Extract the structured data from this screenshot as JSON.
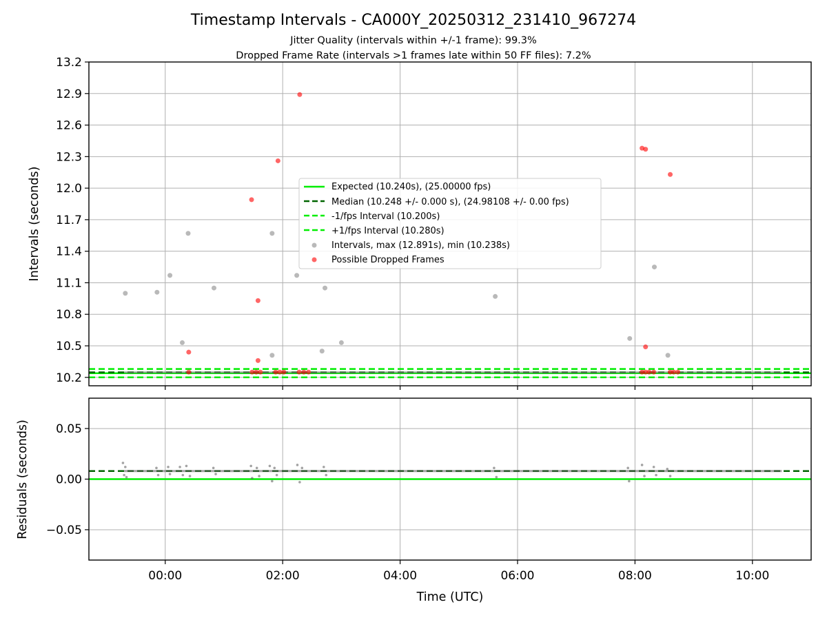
{
  "chart_data": [
    {
      "type": "scatter",
      "title": "Timestamp Intervals - CA000Y_20250312_231410_967274",
      "subtitle_lines": [
        "Jitter Quality (intervals within +/-1 frame): 99.3%",
        "Dropped Frame Rate (intervals >1 frames late within 50 FF files): 7.2%"
      ],
      "xlabel": "",
      "ylabel": "Intervals (seconds)",
      "x_unit": "hours relative to 00:00 UTC",
      "xlim": [
        -1.3,
        11.0
      ],
      "ylim": [
        10.12,
        13.2
      ],
      "yticks": [
        "10.2",
        "10.5",
        "10.8",
        "11.1",
        "11.4",
        "11.7",
        "12.0",
        "12.3",
        "12.6",
        "12.9",
        "13.2"
      ],
      "xticks": [
        {
          "v": 0,
          "label": "00:00"
        },
        {
          "v": 2,
          "label": "02:00"
        },
        {
          "v": 4,
          "label": "04:00"
        },
        {
          "v": 6,
          "label": "06:00"
        },
        {
          "v": 8,
          "label": "08:00"
        },
        {
          "v": 10,
          "label": "10:00"
        }
      ],
      "grid": true,
      "legend_position": "center",
      "lines": [
        {
          "label": "Expected (10.240s), (25.00000 fps)",
          "y": 10.24,
          "style": "solid",
          "color": "#00ee00"
        },
        {
          "label": "Median (10.248 +/- 0.000 s), (24.98108 +/- 0.00 fps)",
          "y": 10.248,
          "style": "dashed",
          "color": "#006400"
        },
        {
          "label": "-1/fps Interval (10.200s)",
          "y": 10.2,
          "style": "dashed",
          "color": "#00ee00"
        },
        {
          "label": "+1/fps Interval (10.280s)",
          "y": 10.28,
          "style": "dashed",
          "color": "#00ee00"
        }
      ],
      "series": [
        {
          "name": "Intervals, max (12.891s), min (10.238s)",
          "color": "#808080",
          "points": [
            [
              -0.68,
              11.0
            ],
            [
              -0.14,
              11.01
            ],
            [
              0.08,
              11.17
            ],
            [
              0.29,
              10.53
            ],
            [
              0.39,
              11.57
            ],
            [
              0.83,
              11.05
            ],
            [
              1.82,
              11.57
            ],
            [
              1.82,
              10.41
            ],
            [
              2.24,
              11.17
            ],
            [
              2.67,
              10.45
            ],
            [
              2.72,
              11.05
            ],
            [
              3.0,
              10.53
            ],
            [
              5.62,
              10.97
            ],
            [
              7.91,
              10.57
            ],
            [
              8.33,
              11.25
            ],
            [
              8.56,
              10.41
            ]
          ],
          "baseline": {
            "y": 10.248,
            "x_from": -0.7,
            "x_to": 10.5
          }
        },
        {
          "name": "Possible Dropped Frames",
          "color": "#ff0000",
          "points": [
            [
              0.4,
              10.44
            ],
            [
              1.47,
              11.89
            ],
            [
              1.58,
              10.93
            ],
            [
              1.58,
              10.36
            ],
            [
              1.92,
              12.26
            ],
            [
              2.29,
              12.89
            ],
            [
              8.12,
              12.38
            ],
            [
              8.18,
              12.37
            ],
            [
              8.18,
              10.49
            ],
            [
              8.6,
              12.13
            ],
            [
              0.4,
              10.25
            ],
            [
              1.48,
              10.25
            ],
            [
              1.55,
              10.25
            ],
            [
              1.62,
              10.25
            ],
            [
              1.88,
              10.25
            ],
            [
              1.95,
              10.25
            ],
            [
              2.02,
              10.25
            ],
            [
              2.28,
              10.25
            ],
            [
              2.36,
              10.25
            ],
            [
              2.44,
              10.25
            ],
            [
              8.12,
              10.25
            ],
            [
              8.18,
              10.25
            ],
            [
              8.24,
              10.25
            ],
            [
              8.32,
              10.25
            ],
            [
              8.6,
              10.25
            ],
            [
              8.66,
              10.25
            ],
            [
              8.73,
              10.25
            ]
          ]
        }
      ]
    },
    {
      "type": "scatter",
      "xlabel": "Time (UTC)",
      "ylabel": "Residuals (seconds)",
      "x_unit": "hours relative to 00:00 UTC",
      "xlim": [
        -1.3,
        11.0
      ],
      "ylim": [
        -0.08,
        0.08
      ],
      "yticks": [
        {
          "v": 0.05,
          "label": "0.05"
        },
        {
          "v": 0.0,
          "label": "0.00"
        },
        {
          "v": -0.05,
          "label": "−0.05"
        }
      ],
      "xticks": [
        {
          "v": 0,
          "label": "00:00"
        },
        {
          "v": 2,
          "label": "02:00"
        },
        {
          "v": 4,
          "label": "04:00"
        },
        {
          "v": 6,
          "label": "06:00"
        },
        {
          "v": 8,
          "label": "08:00"
        },
        {
          "v": 10,
          "label": "10:00"
        }
      ],
      "grid": true,
      "lines": [
        {
          "y": 0.0,
          "style": "solid",
          "color": "#00ee00"
        },
        {
          "y": 0.008,
          "style": "dashed",
          "color": "#006400"
        }
      ],
      "series": [
        {
          "color": "#555555",
          "points": [
            [
              -0.72,
              0.016
            ],
            [
              -0.7,
              0.004
            ],
            [
              -0.68,
              0.012
            ],
            [
              -0.66,
              0.002
            ],
            [
              -0.15,
              0.011
            ],
            [
              -0.12,
              0.004
            ],
            [
              0.05,
              0.012
            ],
            [
              0.08,
              0.005
            ],
            [
              0.25,
              0.012
            ],
            [
              0.3,
              0.004
            ],
            [
              0.36,
              0.013
            ],
            [
              0.42,
              0.003
            ],
            [
              0.82,
              0.011
            ],
            [
              0.86,
              0.005
            ],
            [
              1.46,
              0.013
            ],
            [
              1.48,
              0.001
            ],
            [
              1.56,
              0.011
            ],
            [
              1.6,
              0.003
            ],
            [
              1.78,
              0.013
            ],
            [
              1.82,
              -0.002
            ],
            [
              1.86,
              0.011
            ],
            [
              1.9,
              0.004
            ],
            [
              2.25,
              0.014
            ],
            [
              2.29,
              -0.003
            ],
            [
              2.33,
              0.011
            ],
            [
              2.7,
              0.012
            ],
            [
              2.74,
              0.004
            ],
            [
              5.6,
              0.011
            ],
            [
              5.64,
              0.002
            ],
            [
              7.88,
              0.011
            ],
            [
              7.9,
              -0.002
            ],
            [
              8.12,
              0.014
            ],
            [
              8.16,
              0.003
            ],
            [
              8.32,
              0.012
            ],
            [
              8.36,
              0.004
            ],
            [
              8.55,
              0.01
            ],
            [
              8.6,
              0.003
            ]
          ],
          "baseline": {
            "y": 0.008,
            "x_from": -0.7,
            "x_to": 10.5
          }
        }
      ]
    }
  ]
}
